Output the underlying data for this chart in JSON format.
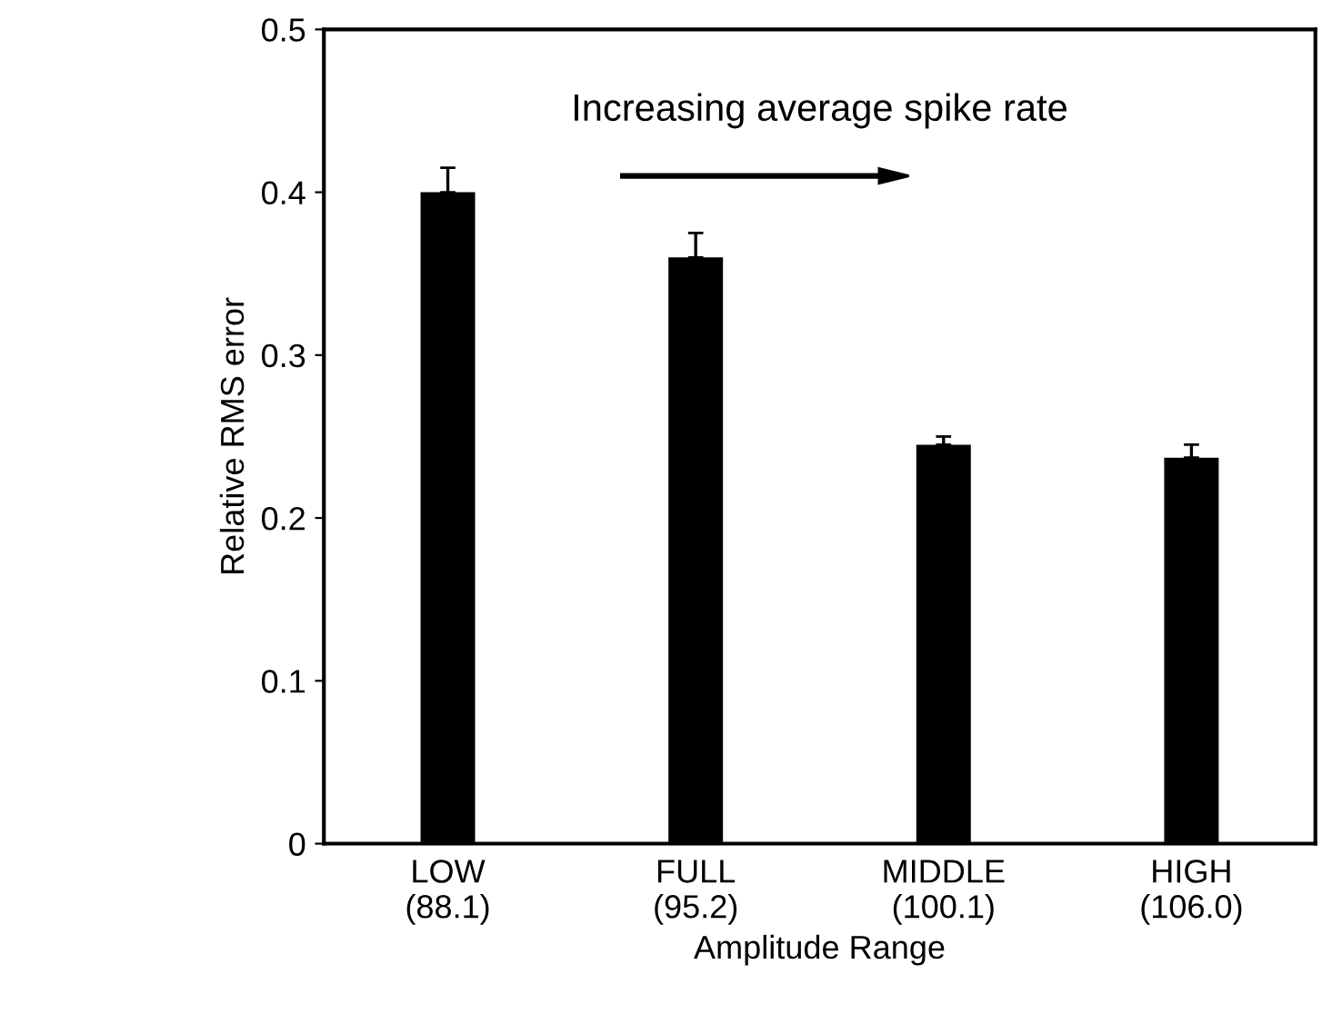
{
  "chart_data": {
    "type": "bar",
    "xlabel": "Amplitude Range",
    "ylabel": "Relative RMS error",
    "categories": [
      "LOW\n(88.1)",
      "FULL\n(95.2)",
      "MIDDLE\n(100.1)",
      "HIGH\n(106.0)"
    ],
    "values": [
      0.4,
      0.36,
      0.245,
      0.237
    ],
    "errors": [
      [
        0.4,
        0.415
      ],
      [
        0.36,
        0.375
      ],
      [
        0.245,
        0.25
      ],
      [
        0.237,
        0.245
      ]
    ],
    "color": "#000000",
    "ylim": [
      0,
      0.5
    ],
    "yticks": [
      0,
      0.1,
      0.2,
      0.3,
      0.4,
      0.5
    ],
    "annotations": [
      "Increasing average spike rate"
    ],
    "grid": false,
    "legend": false
  }
}
